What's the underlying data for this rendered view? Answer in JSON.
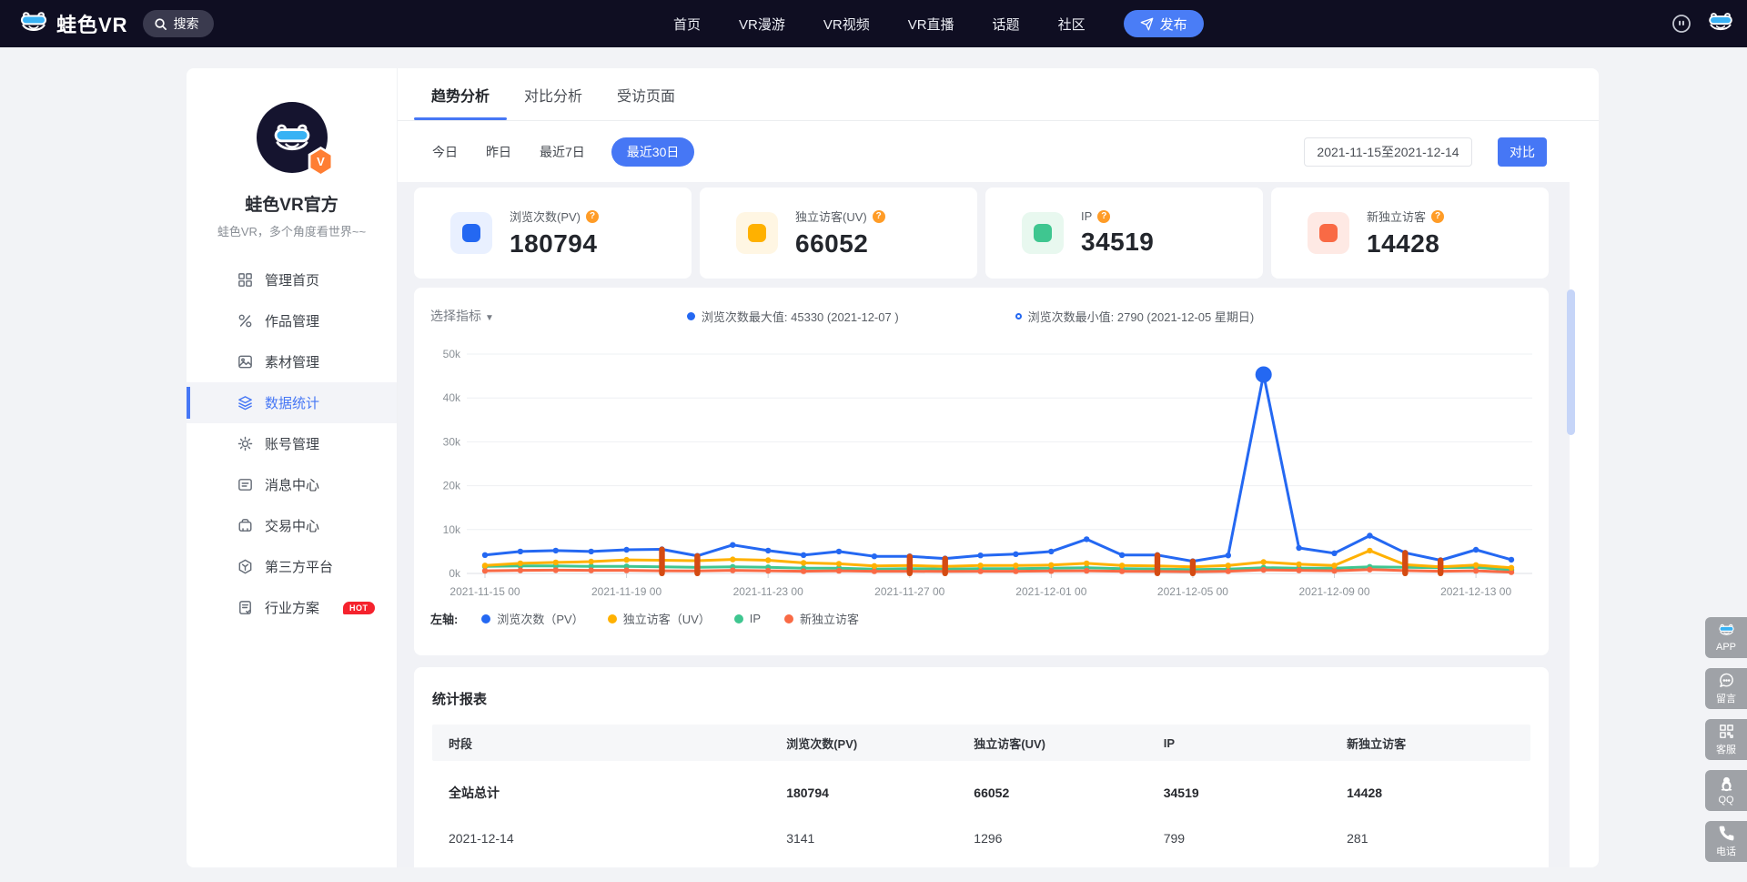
{
  "navbar": {
    "brand": "蛙色VR",
    "search_label": "搜索",
    "links": [
      "首页",
      "VR漫游",
      "VR视频",
      "VR直播",
      "话题",
      "社区"
    ],
    "publish_label": "发布"
  },
  "sidebar": {
    "name": "蛙色VR官方",
    "bio": "蛙色VR，多个角度看世界~~",
    "items": [
      {
        "label": "管理首页",
        "icon": "grid-icon",
        "active": false
      },
      {
        "label": "作品管理",
        "icon": "works-icon",
        "active": false
      },
      {
        "label": "素材管理",
        "icon": "material-icon",
        "active": false
      },
      {
        "label": "数据统计",
        "icon": "stats-icon",
        "active": true
      },
      {
        "label": "账号管理",
        "icon": "gear-icon",
        "active": false
      },
      {
        "label": "消息中心",
        "icon": "message-icon",
        "active": false
      },
      {
        "label": "交易中心",
        "icon": "trade-icon",
        "active": false
      },
      {
        "label": "第三方平台",
        "icon": "platform-icon",
        "active": false
      },
      {
        "label": "行业方案",
        "icon": "industry-icon",
        "active": false,
        "badge": "HOT"
      }
    ]
  },
  "tabs": {
    "items": [
      "趋势分析",
      "对比分析",
      "受访页面"
    ],
    "active_index": 0
  },
  "filters": {
    "ranges": [
      "今日",
      "昨日",
      "最近7日",
      "最近30日"
    ],
    "active_index": 3,
    "date_range": "2021-11-15至2021-12-14",
    "compare_label": "对比"
  },
  "stats": [
    {
      "label": "浏览次数(PV)",
      "value": "180794",
      "color": "#2468f2",
      "tint": "#e9f0ff"
    },
    {
      "label": "独立访客(UV)",
      "value": "66052",
      "color": "#ffb100",
      "tint": "#fff6e3"
    },
    {
      "label": "IP",
      "value": "34519",
      "color": "#3fc690",
      "tint": "#e8f8ef"
    },
    {
      "label": "新独立访客",
      "value": "14428",
      "color": "#f96a45",
      "tint": "#fee9e4"
    }
  ],
  "chart": {
    "select_label": "选择指标",
    "max_note": "浏览次数最大值: 45330 (2021-12-07 )",
    "min_note": "浏览次数最小值: 2790 (2021-12-05 星期日)",
    "legend_prefix": "左轴:"
  },
  "chart_data": {
    "type": "line",
    "title": "趋势分析 最近30日",
    "x": [
      "2021-11-15",
      "2021-11-16",
      "2021-11-17",
      "2021-11-18",
      "2021-11-19",
      "2021-11-20",
      "2021-11-21",
      "2021-11-22",
      "2021-11-23",
      "2021-11-24",
      "2021-11-25",
      "2021-11-26",
      "2021-11-27",
      "2021-11-28",
      "2021-11-29",
      "2021-11-30",
      "2021-12-01",
      "2021-12-02",
      "2021-12-03",
      "2021-12-04",
      "2021-12-05",
      "2021-12-06",
      "2021-12-07",
      "2021-12-08",
      "2021-12-09",
      "2021-12-10",
      "2021-12-11",
      "2021-12-12",
      "2021-12-13",
      "2021-12-14"
    ],
    "series": [
      {
        "name": "浏览次数（PV）",
        "color": "#2468f2",
        "values": [
          4200,
          5000,
          5200,
          5000,
          5400,
          5500,
          4000,
          6500,
          5200,
          4200,
          5000,
          3900,
          3900,
          3400,
          4100,
          4400,
          5000,
          7800,
          4200,
          4200,
          2790,
          4100,
          45330,
          5800,
          4600,
          8600,
          4700,
          3000,
          5400,
          3141
        ]
      },
      {
        "name": "独立访客（UV）",
        "color": "#ffb100",
        "values": [
          1800,
          2300,
          2500,
          2700,
          3100,
          3000,
          2900,
          3200,
          3000,
          2400,
          2200,
          1700,
          1800,
          1600,
          1800,
          1800,
          1900,
          2300,
          1800,
          1700,
          1500,
          1800,
          2600,
          2100,
          1800,
          5200,
          2000,
          1500,
          1900,
          1296
        ]
      },
      {
        "name": "IP",
        "color": "#3fc690",
        "values": [
          1600,
          1700,
          1700,
          1600,
          1600,
          1500,
          1400,
          1500,
          1400,
          1200,
          1200,
          1000,
          1100,
          1000,
          1100,
          1100,
          1200,
          1300,
          1100,
          1000,
          900,
          1000,
          1300,
          1200,
          1200,
          1500,
          1400,
          1300,
          1400,
          799
        ]
      },
      {
        "name": "新独立访客",
        "color": "#f96a45",
        "values": [
          600,
          700,
          750,
          700,
          700,
          600,
          550,
          700,
          600,
          500,
          600,
          500,
          500,
          450,
          500,
          500,
          550,
          600,
          500,
          450,
          400,
          500,
          800,
          700,
          600,
          900,
          650,
          500,
          600,
          281
        ]
      }
    ],
    "ylim": [
      0,
      50000
    ],
    "ytick_labels": [
      "0k",
      "10k",
      "20k",
      "30k",
      "40k",
      "50k"
    ],
    "xtick_indices": [
      0,
      4,
      8,
      12,
      16,
      20,
      24,
      28
    ],
    "xtick_labels": [
      "2021-11-15 00",
      "2021-11-19 00",
      "2021-11-23 00",
      "2021-11-27 00",
      "2021-12-01 00",
      "2021-12-05 00",
      "2021-12-09 00",
      "2021-12-13 00"
    ],
    "max_point": {
      "index": 22,
      "value": 45330,
      "label": "45330 (2021-12-07)"
    },
    "min_point": {
      "index": 20,
      "value": 2790,
      "label": "2790 (2021-12-05 星期日)"
    },
    "weekend_indices": [
      5,
      6,
      12,
      13,
      19,
      20,
      26,
      27
    ],
    "weekend_color": "#d44b12",
    "grid": true,
    "legend_position": "bottom"
  },
  "report": {
    "title": "统计报表",
    "columns": [
      "时段",
      "浏览次数(PV)",
      "独立访客(UV)",
      "IP",
      "新独立访客"
    ],
    "rows": [
      {
        "label": "全站总计",
        "values": [
          "180794",
          "66052",
          "34519",
          "14428"
        ],
        "bold": true
      },
      {
        "label": "2021-12-14",
        "values": [
          "3141",
          "1296",
          "799",
          "281"
        ],
        "bold": false
      }
    ]
  },
  "floating": [
    {
      "label": "APP",
      "icon": "frog-icon"
    },
    {
      "label": "留言",
      "icon": "comment-icon"
    },
    {
      "label": "客服",
      "icon": "qrcode-icon"
    },
    {
      "label": "QQ",
      "icon": "qq-icon"
    },
    {
      "label": "电话",
      "icon": "phone-icon"
    }
  ]
}
